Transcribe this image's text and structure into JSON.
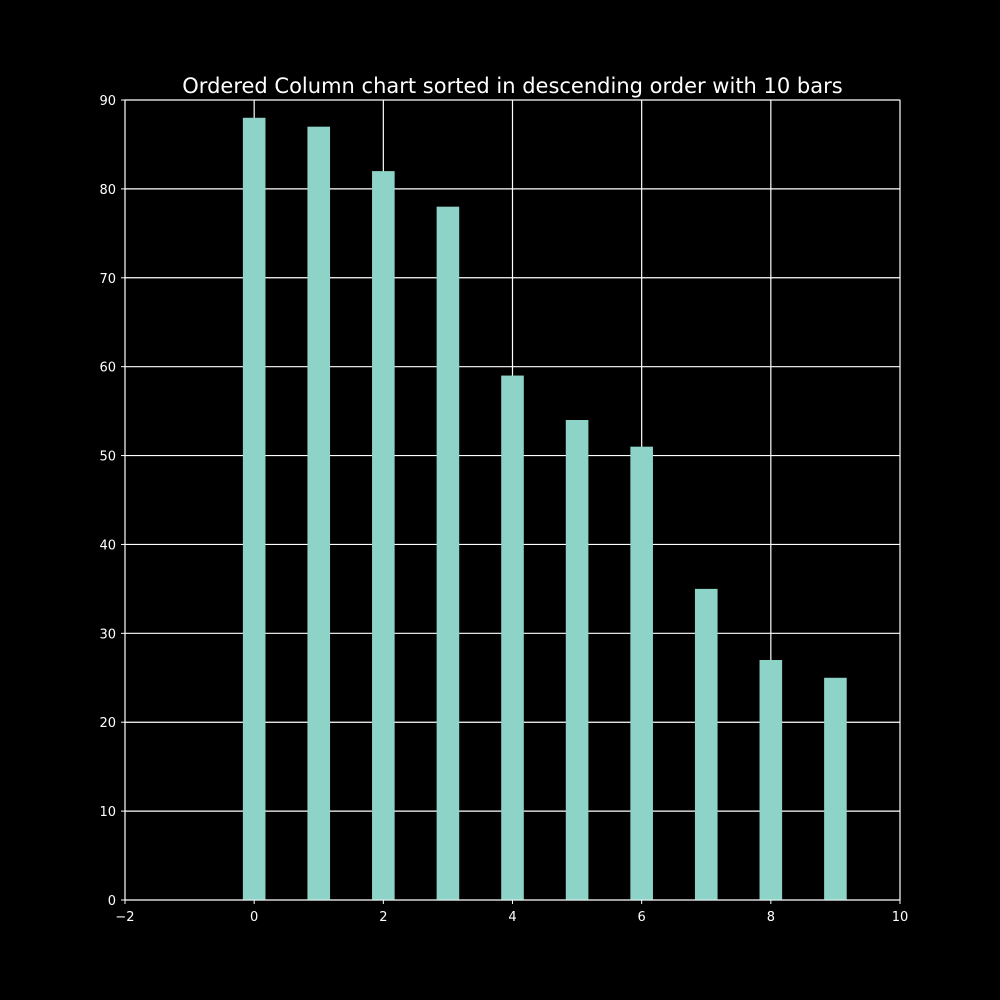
{
  "chart_data": {
    "type": "bar",
    "title": "Ordered Column chart sorted in descending order with 10 bars",
    "xlabel": "",
    "ylabel": "",
    "x": [
      0,
      1,
      2,
      3,
      4,
      5,
      6,
      7,
      8,
      9
    ],
    "values": [
      88,
      87,
      82,
      78,
      59,
      54,
      51,
      35,
      27,
      25
    ],
    "xlim": [
      -2,
      10
    ],
    "ylim": [
      0,
      90
    ],
    "xticks": [
      -2,
      0,
      2,
      4,
      6,
      8,
      10
    ],
    "xtick_labels": [
      "−2",
      "0",
      "2",
      "4",
      "6",
      "8",
      "10"
    ],
    "yticks": [
      0,
      10,
      20,
      30,
      40,
      50,
      60,
      70,
      80,
      90
    ],
    "ytick_labels": [
      "0",
      "10",
      "20",
      "30",
      "40",
      "50",
      "60",
      "70",
      "80",
      "90"
    ],
    "grid": true,
    "legend": false,
    "colors": {
      "background": "#000000",
      "bar": "#8dd3c7",
      "grid": "#ffffff",
      "text": "#ffffff",
      "spine": "#ffffff"
    }
  }
}
